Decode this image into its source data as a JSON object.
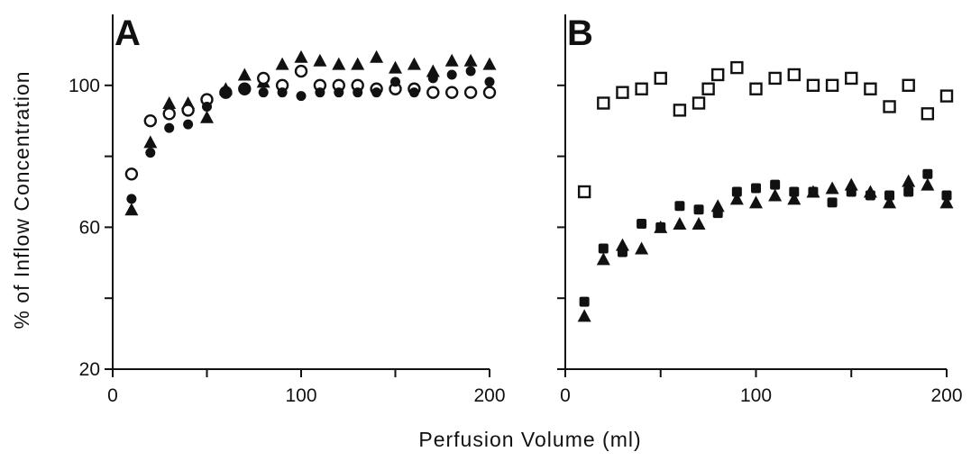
{
  "chart_data": [
    {
      "type": "scatter",
      "panel": "A",
      "xlabel": "Perfusion Volume (ml)",
      "ylabel": "% of Inflow Concentration",
      "xlim": [
        0,
        200
      ],
      "ylim": [
        20,
        120
      ],
      "xticks": [
        0,
        100,
        200
      ],
      "yticks": [
        20,
        60,
        100
      ],
      "y_minor_ticks": [
        40,
        80
      ],
      "x_minor_ticks": [
        50,
        150
      ],
      "grid": false,
      "series": [
        {
          "marker": "triangle-filled",
          "x": [
            10,
            20,
            30,
            40,
            50,
            60,
            70,
            80,
            90,
            100,
            110,
            120,
            130,
            140,
            150,
            160,
            170,
            180,
            190,
            200
          ],
          "y": [
            65,
            84,
            95,
            95,
            91,
            99,
            103,
            101,
            106,
            108,
            107,
            106,
            106,
            108,
            105,
            106,
            104,
            107,
            107,
            106
          ]
        },
        {
          "marker": "circle-open",
          "x": [
            10,
            20,
            30,
            40,
            50,
            60,
            70,
            80,
            90,
            100,
            110,
            120,
            130,
            140,
            150,
            160,
            170,
            180,
            190,
            200
          ],
          "y": [
            75,
            90,
            92,
            93,
            96,
            98,
            99,
            102,
            100,
            104,
            100,
            100,
            100,
            99,
            99,
            99,
            98,
            98,
            98,
            98
          ]
        },
        {
          "marker": "circle-filled",
          "x": [
            10,
            20,
            30,
            40,
            50,
            60,
            70,
            80,
            90,
            100,
            110,
            120,
            130,
            140,
            150,
            160,
            170,
            180,
            190,
            200
          ],
          "y": [
            68,
            81,
            88,
            89,
            94,
            98,
            99,
            98,
            98,
            97,
            98,
            98,
            98,
            98,
            101,
            98,
            102,
            103,
            104,
            101
          ]
        }
      ]
    },
    {
      "type": "scatter",
      "panel": "B",
      "xlabel": "Perfusion Volume (ml)",
      "ylabel": "% of Inflow Concentration",
      "xlim": [
        0,
        200
      ],
      "ylim": [
        20,
        120
      ],
      "xticks": [
        0,
        100,
        200
      ],
      "yticks": [
        20,
        60,
        100
      ],
      "y_minor_ticks": [
        40,
        80
      ],
      "x_minor_ticks": [
        50,
        150
      ],
      "grid": false,
      "series": [
        {
          "marker": "square-open",
          "x": [
            10,
            20,
            30,
            40,
            50,
            60,
            70,
            75,
            80,
            90,
            100,
            110,
            120,
            130,
            140,
            150,
            160,
            170,
            180,
            190,
            200
          ],
          "y": [
            70,
            95,
            98,
            99,
            102,
            93,
            95,
            99,
            103,
            105,
            99,
            102,
            103,
            100,
            100,
            102,
            99,
            94,
            100,
            92,
            97
          ]
        },
        {
          "marker": "square-filled",
          "x": [
            10,
            20,
            30,
            40,
            50,
            60,
            70,
            80,
            90,
            100,
            110,
            120,
            130,
            140,
            150,
            160,
            170,
            180,
            190,
            200
          ],
          "y": [
            39,
            54,
            53,
            61,
            60,
            66,
            65,
            64,
            70,
            71,
            72,
            70,
            70,
            67,
            70,
            69,
            69,
            70,
            75,
            69
          ]
        },
        {
          "marker": "triangle-filled",
          "x": [
            10,
            20,
            30,
            40,
            50,
            60,
            70,
            80,
            90,
            100,
            110,
            120,
            130,
            140,
            150,
            160,
            170,
            180,
            190,
            200
          ],
          "y": [
            35,
            51,
            55,
            54,
            60,
            61,
            61,
            66,
            68,
            67,
            69,
            68,
            70,
            71,
            72,
            70,
            67,
            73,
            72,
            67
          ]
        }
      ]
    }
  ]
}
